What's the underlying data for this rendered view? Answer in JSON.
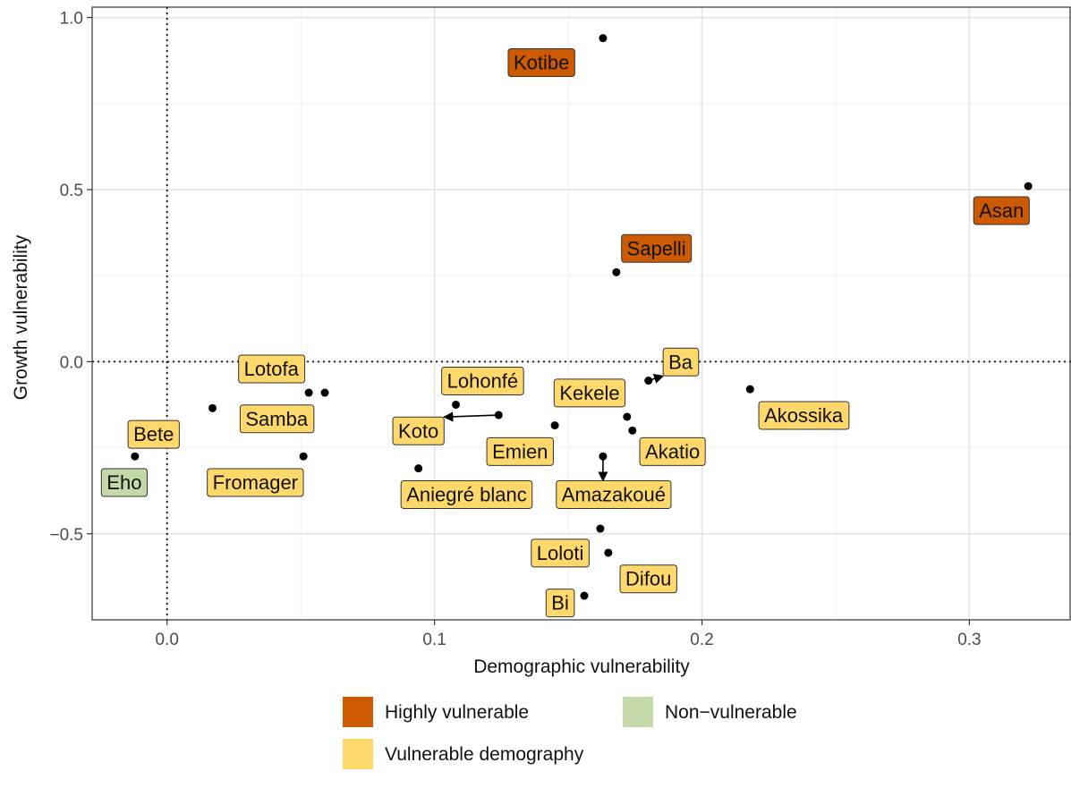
{
  "chart_data": {
    "type": "scatter",
    "xlabel": "Demographic vulnerability",
    "ylabel": "Growth vulnerability",
    "xlim": [
      -0.028,
      0.338
    ],
    "ylim": [
      -0.75,
      1.03
    ],
    "x_ticks": [
      0.0,
      0.1,
      0.2,
      0.3
    ],
    "x_tick_labels": [
      "0.0",
      "0.1",
      "0.2",
      "0.3"
    ],
    "y_ticks": [
      -0.5,
      0.0,
      0.5,
      1.0
    ],
    "y_tick_labels": [
      "−0.5",
      "0.0",
      "0.5",
      "1.0"
    ],
    "x_minor": [
      0.05,
      0.15,
      0.25
    ],
    "y_minor": [
      -0.25,
      0.25,
      0.75
    ],
    "grid": true,
    "reference_lines": {
      "x": 0,
      "y": 0,
      "style": "dotted"
    },
    "legend_placement": "bottom",
    "categories": [
      {
        "key": "high",
        "label": "Highly vulnerable",
        "color": "#cc5a00"
      },
      {
        "key": "non",
        "label": "Non−vulnerable",
        "color": "#c4d8a8"
      },
      {
        "key": "demo",
        "label": "Vulnerable demography",
        "color": "#fed86b"
      }
    ],
    "points": [
      {
        "name": "Kotibe",
        "x": 0.163,
        "y": 0.94,
        "cat": "high",
        "lx": 0.14,
        "ly": 0.87
      },
      {
        "name": "Asan",
        "x": 0.322,
        "y": 0.51,
        "cat": "high",
        "lx": 0.312,
        "ly": 0.44
      },
      {
        "name": "Sapelli",
        "x": 0.168,
        "y": 0.26,
        "cat": "high",
        "lx": 0.183,
        "ly": 0.33
      },
      {
        "name": "Ba",
        "x": 0.18,
        "y": -0.055,
        "cat": "demo",
        "lx": 0.192,
        "ly": 0.0,
        "arrow": true
      },
      {
        "name": "Akossika",
        "x": 0.218,
        "y": -0.08,
        "cat": "demo",
        "lx": 0.238,
        "ly": -0.155
      },
      {
        "name": "Lotofa",
        "x": 0.053,
        "y": -0.09,
        "cat": "demo",
        "lx": 0.039,
        "ly": -0.02
      },
      {
        "name": "Lohonfé",
        "x": 0.108,
        "y": -0.125,
        "cat": "demo",
        "lx": 0.118,
        "ly": -0.055
      },
      {
        "name": "Kekele",
        "x": 0.172,
        "y": -0.16,
        "cat": "demo",
        "lx": 0.158,
        "ly": -0.09
      },
      {
        "name": "Samba",
        "x": 0.059,
        "y": -0.09,
        "cat": "demo",
        "lx": 0.041,
        "ly": -0.165
      },
      {
        "name": "Bete",
        "x": 0.017,
        "y": -0.135,
        "cat": "demo",
        "lx": -0.005,
        "ly": -0.21
      },
      {
        "name": "Koto",
        "x": 0.124,
        "y": -0.155,
        "cat": "demo",
        "lx": 0.094,
        "ly": -0.2,
        "arrow": true
      },
      {
        "name": "Emien",
        "x": 0.145,
        "y": -0.185,
        "cat": "demo",
        "lx": 0.132,
        "ly": -0.26
      },
      {
        "name": "Akatio",
        "x": 0.174,
        "y": -0.2,
        "cat": "demo",
        "lx": 0.189,
        "ly": -0.26
      },
      {
        "name": "Eho",
        "x": -0.012,
        "y": -0.275,
        "cat": "non",
        "lx": -0.016,
        "ly": -0.35
      },
      {
        "name": "Fromager",
        "x": 0.051,
        "y": -0.275,
        "cat": "demo",
        "lx": 0.033,
        "ly": -0.35
      },
      {
        "name": "Aniegré blanc",
        "x": 0.094,
        "y": -0.31,
        "cat": "demo",
        "lx": 0.112,
        "ly": -0.385
      },
      {
        "name": "Amazakoué",
        "x": 0.163,
        "y": -0.275,
        "cat": "demo",
        "lx": 0.167,
        "ly": -0.385,
        "arrow": true
      },
      {
        "name": "Loloti",
        "x": 0.162,
        "y": -0.485,
        "cat": "demo",
        "lx": 0.147,
        "ly": -0.555
      },
      {
        "name": "Difou",
        "x": 0.165,
        "y": -0.555,
        "cat": "demo",
        "lx": 0.18,
        "ly": -0.63
      },
      {
        "name": "Bi",
        "x": 0.156,
        "y": -0.68,
        "cat": "demo",
        "lx": 0.147,
        "ly": -0.7
      }
    ]
  }
}
